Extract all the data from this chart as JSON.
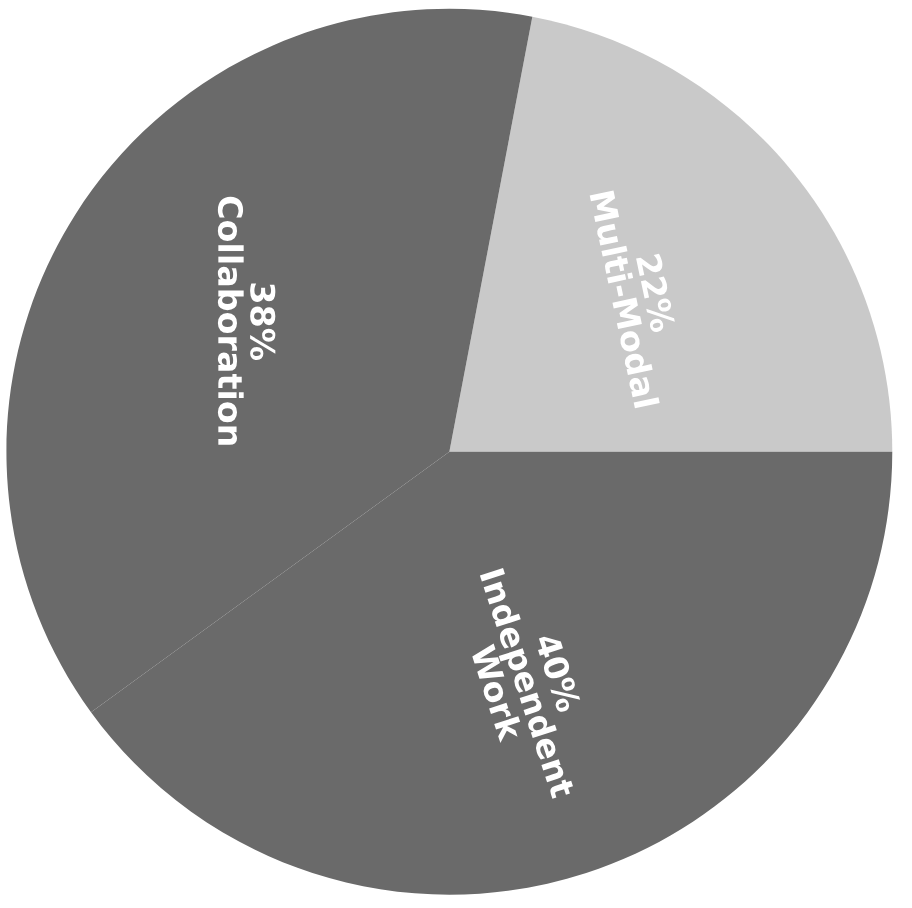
{
  "chart_data": {
    "type": "pie",
    "categories": [
      "Multi-Modal",
      "Collaboration",
      "Independent Work"
    ],
    "values": [
      22,
      38,
      40
    ],
    "value_labels": [
      "22%",
      "38%",
      "40%"
    ],
    "colors": [
      "#c9c9c9",
      "#6a6a6a",
      "#6a6a6a"
    ],
    "legend": false
  }
}
